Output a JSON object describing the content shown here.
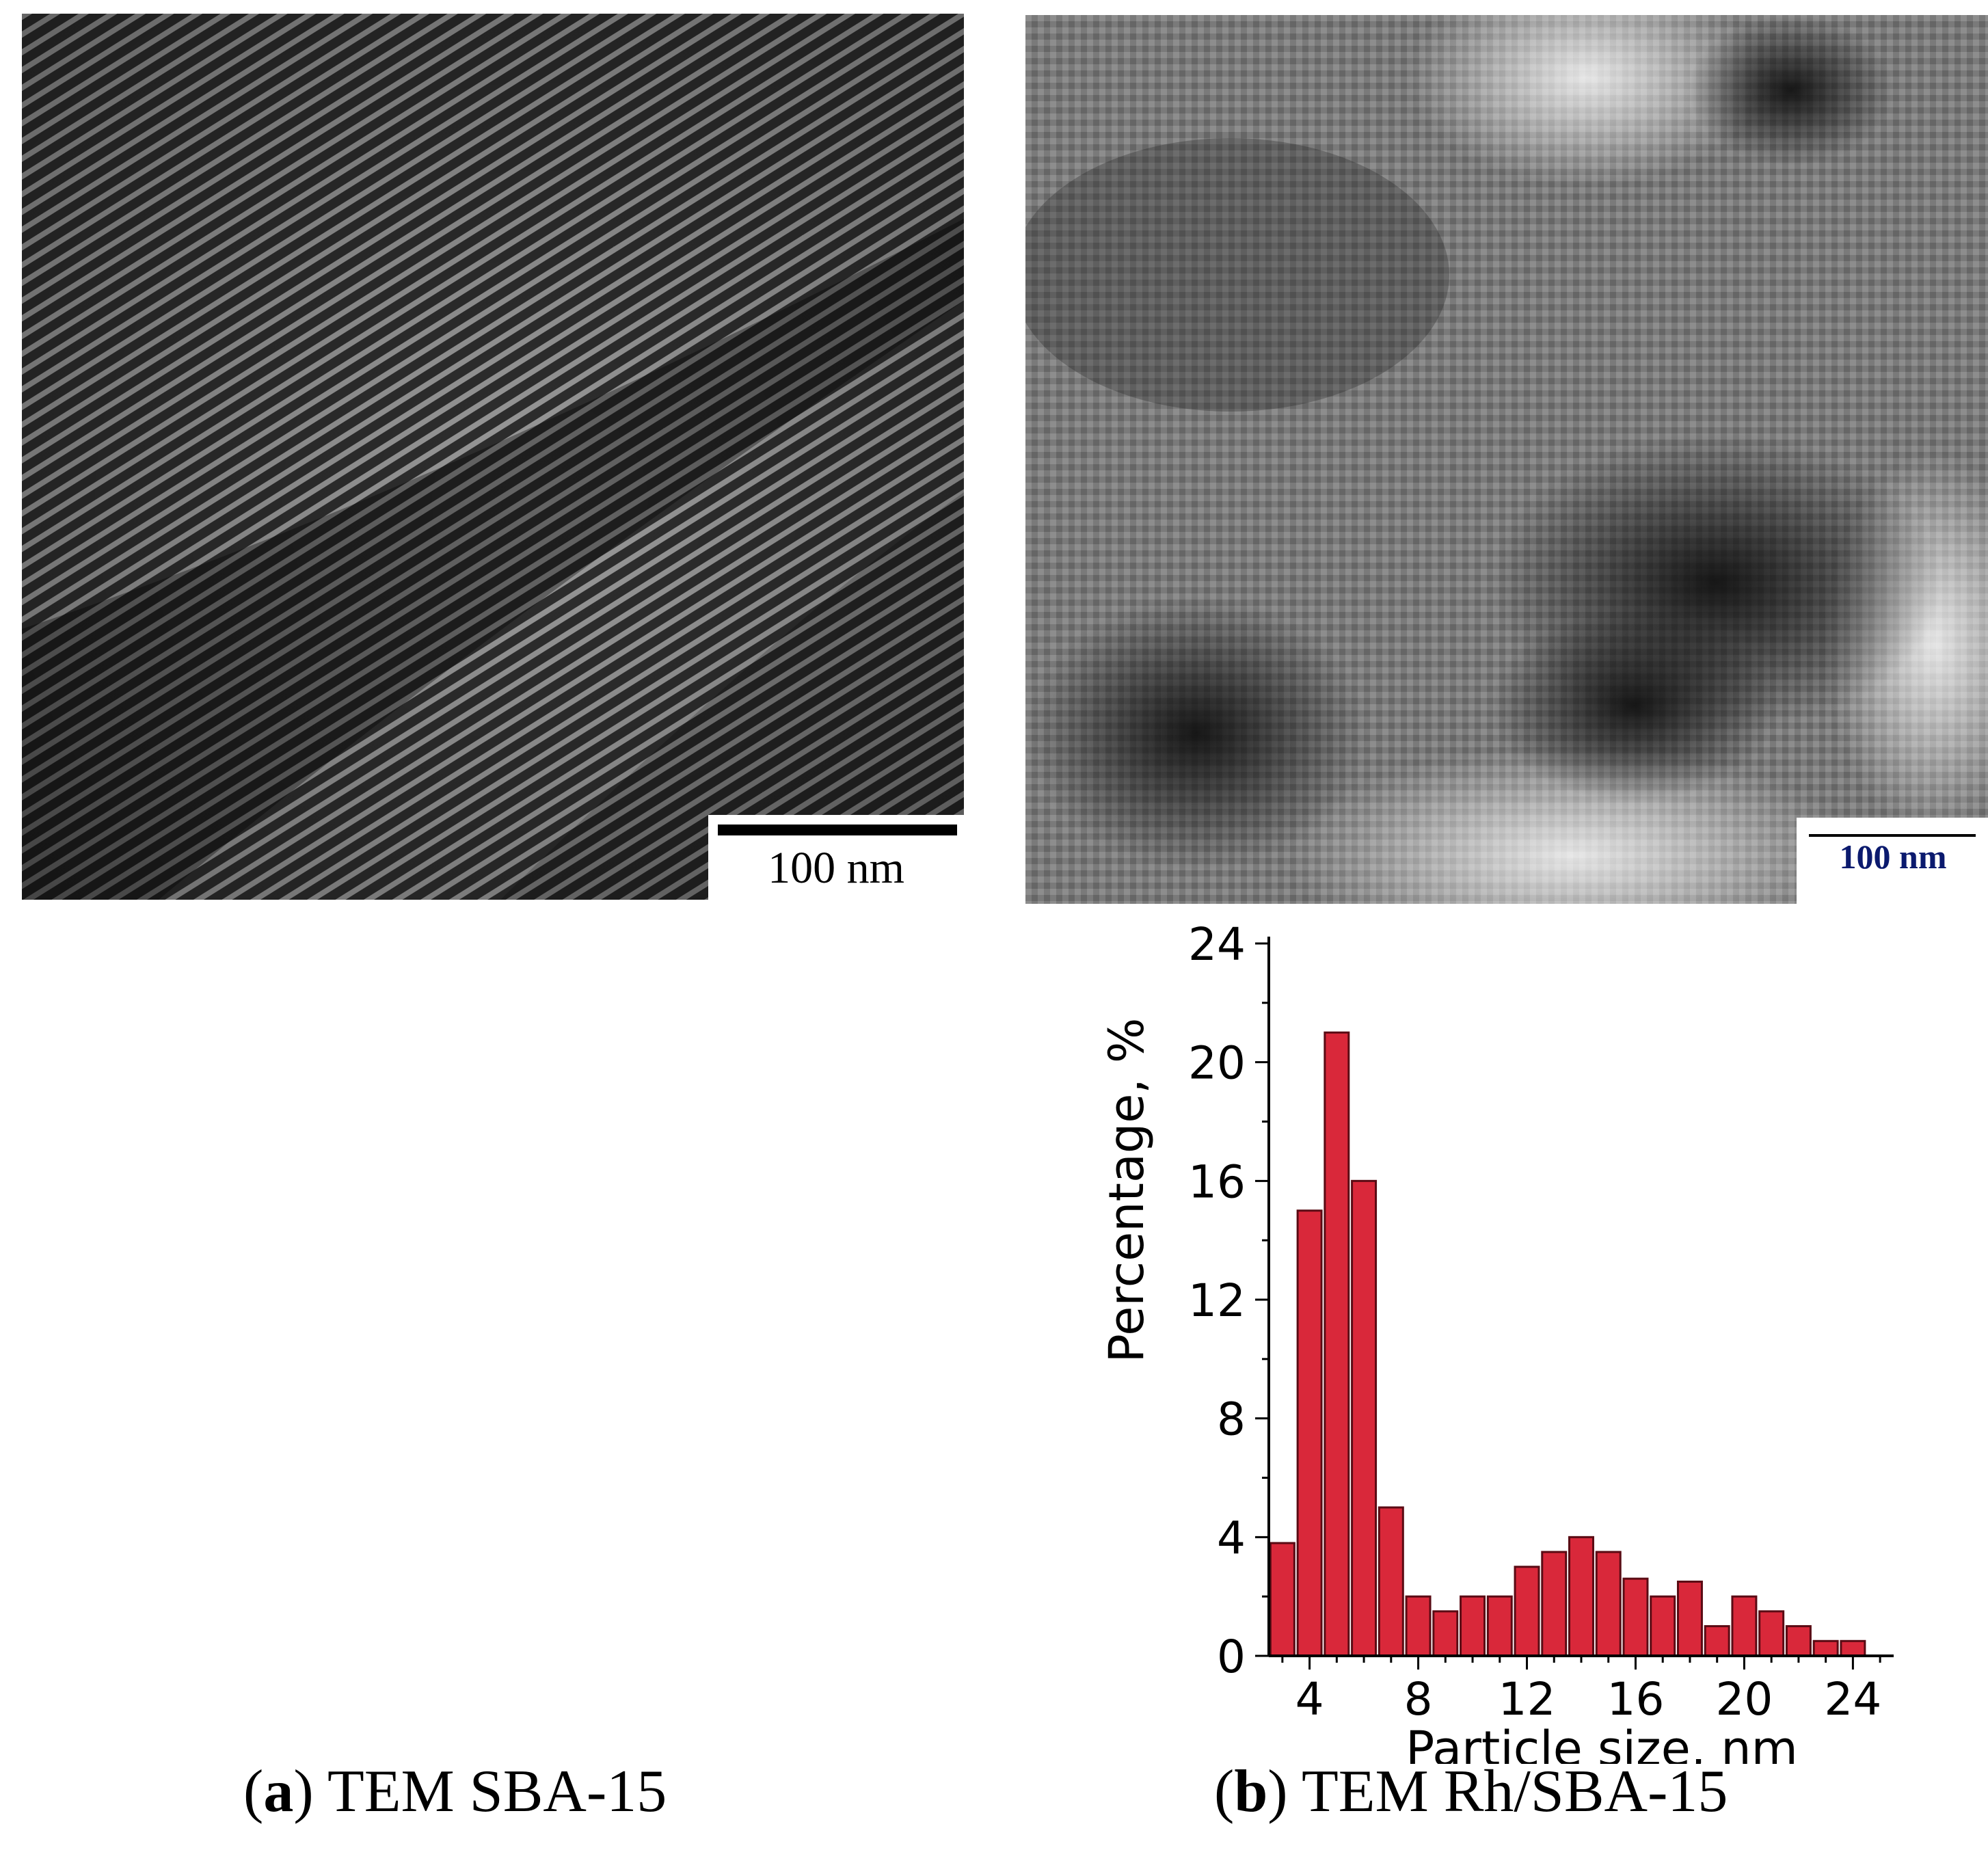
{
  "panel_a": {
    "scale_bar": "100 nm",
    "caption_letter": "a",
    "caption_text": "TEM SBA-15"
  },
  "panel_b": {
    "scale_bar": "100 nm",
    "caption_letter": "b",
    "caption_text": "TEM Rh/SBA-15"
  },
  "chart_data": {
    "type": "bar",
    "title": "",
    "xlabel": "Particle size, nm",
    "ylabel": "Percentage, %",
    "x": [
      3,
      4,
      5,
      6,
      7,
      8,
      9,
      10,
      11,
      12,
      13,
      14,
      15,
      16,
      17,
      18,
      19,
      20,
      21,
      22,
      23,
      24
    ],
    "values": [
      3.8,
      15,
      21,
      16,
      5,
      2,
      1.5,
      2,
      2,
      3,
      3.5,
      4,
      3.5,
      2.6,
      2,
      2.5,
      1,
      2,
      1.5,
      1,
      0.5,
      0.5
    ],
    "xlim": [
      2.5,
      25.5
    ],
    "ylim": [
      0,
      24
    ],
    "xticks": [
      4,
      8,
      12,
      16,
      20,
      24
    ],
    "yticks": [
      0,
      4,
      8,
      12,
      16,
      20,
      24
    ],
    "grid": false,
    "bar_color": "#d9283a"
  }
}
